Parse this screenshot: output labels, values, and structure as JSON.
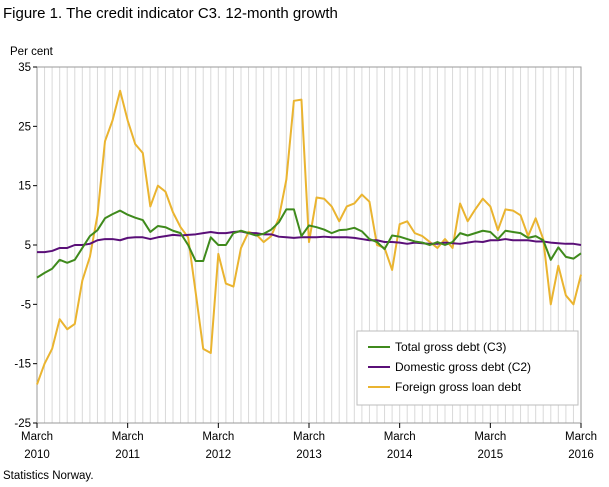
{
  "figure": {
    "title": "Figure 1. The credit indicator C3. 12-month growth",
    "source": "Statistics Norway."
  },
  "chart_data": {
    "type": "line",
    "title": "Figure 1. The credit indicator C3. 12-month growth",
    "ylabel": "Per cent",
    "xlabel": "",
    "ylim": [
      -25,
      35
    ],
    "yticks": [
      35,
      25,
      15,
      5,
      -5,
      -15,
      -25
    ],
    "xlim": [
      "2010-03",
      "2016-03"
    ],
    "x_tick_labels": [
      {
        "month": "March",
        "year": "2010"
      },
      {
        "month": "March",
        "year": "2011"
      },
      {
        "month": "March",
        "year": "2012"
      },
      {
        "month": "March",
        "year": "2013"
      },
      {
        "month": "March",
        "year": "2014"
      },
      {
        "month": "March",
        "year": "2015"
      },
      {
        "month": "March",
        "year": "2016"
      }
    ],
    "grid": "vertical-monthly",
    "legend_position": "bottom-right",
    "x": [
      "2010-03",
      "2010-04",
      "2010-05",
      "2010-06",
      "2010-07",
      "2010-08",
      "2010-09",
      "2010-10",
      "2010-11",
      "2010-12",
      "2011-01",
      "2011-02",
      "2011-03",
      "2011-04",
      "2011-05",
      "2011-06",
      "2011-07",
      "2011-08",
      "2011-09",
      "2011-10",
      "2011-11",
      "2011-12",
      "2012-01",
      "2012-02",
      "2012-03",
      "2012-04",
      "2012-05",
      "2012-06",
      "2012-07",
      "2012-08",
      "2012-09",
      "2012-10",
      "2012-11",
      "2012-12",
      "2013-01",
      "2013-02",
      "2013-03",
      "2013-04",
      "2013-05",
      "2013-06",
      "2013-07",
      "2013-08",
      "2013-09",
      "2013-10",
      "2013-11",
      "2013-12",
      "2014-01",
      "2014-02",
      "2014-03",
      "2014-04",
      "2014-05",
      "2014-06",
      "2014-07",
      "2014-08",
      "2014-09",
      "2014-10",
      "2014-11",
      "2014-12",
      "2015-01",
      "2015-02",
      "2015-03",
      "2015-04",
      "2015-05",
      "2015-06",
      "2015-07",
      "2015-08",
      "2015-09",
      "2015-10",
      "2015-11",
      "2015-12",
      "2016-01",
      "2016-02",
      "2016-03"
    ],
    "series": [
      {
        "name": "Total gross debt (C3)",
        "color": "#3f8a1c",
        "values": [
          -0.5,
          0.3,
          1.0,
          2.5,
          2.0,
          2.5,
          4.5,
          6.5,
          7.5,
          9.5,
          10.2,
          10.8,
          10.1,
          9.6,
          9.2,
          7.2,
          8.2,
          8.0,
          7.4,
          7.0,
          5.0,
          2.3,
          2.3,
          6.3,
          5.0,
          5.0,
          7.0,
          7.4,
          7.0,
          6.6,
          6.9,
          7.6,
          8.8,
          11.0,
          11.0,
          6.5,
          8.3,
          8.0,
          7.6,
          7.0,
          7.5,
          7.6,
          7.9,
          7.3,
          6.0,
          5.5,
          4.3,
          6.6,
          6.4,
          6.0,
          5.6,
          5.4,
          5.0,
          5.5,
          5.0,
          5.5,
          7.0,
          6.6,
          7.0,
          7.4,
          7.2,
          6.0,
          7.4,
          7.2,
          7.0,
          6.2,
          6.5,
          5.8,
          2.5,
          4.6,
          3.0,
          2.7,
          3.6
        ]
      },
      {
        "name": "Domestic gross debt (C2)",
        "color": "#5a0f78",
        "values": [
          3.8,
          3.8,
          4.0,
          4.5,
          4.5,
          5.0,
          5.0,
          5.2,
          5.8,
          6.0,
          6.0,
          5.8,
          6.2,
          6.3,
          6.3,
          6.0,
          6.3,
          6.5,
          6.7,
          6.6,
          6.7,
          6.8,
          7.0,
          7.2,
          7.0,
          7.0,
          7.2,
          7.3,
          7.0,
          7.0,
          6.8,
          6.8,
          6.4,
          6.3,
          6.2,
          6.3,
          6.3,
          6.3,
          6.4,
          6.3,
          6.3,
          6.3,
          6.2,
          6.0,
          5.8,
          5.8,
          5.5,
          5.5,
          5.4,
          5.2,
          5.4,
          5.3,
          5.2,
          5.2,
          5.4,
          5.3,
          5.2,
          5.4,
          5.6,
          5.5,
          5.8,
          5.8,
          6.0,
          5.8,
          5.8,
          5.8,
          5.6,
          5.6,
          5.4,
          5.3,
          5.2,
          5.2,
          5.0
        ]
      },
      {
        "name": "Foreign gross loan debt",
        "color": "#eab430",
        "values": [
          -18.5,
          -15.0,
          -12.5,
          -7.5,
          -9.2,
          -8.3,
          -1.0,
          3.0,
          10.0,
          22.5,
          26.0,
          31.0,
          26.0,
          22.0,
          20.5,
          11.5,
          15.0,
          14.0,
          10.5,
          8.0,
          6.3,
          -3.0,
          -12.5,
          -13.2,
          3.5,
          -1.5,
          -2.0,
          4.5,
          7.2,
          6.8,
          5.5,
          6.5,
          9.5,
          16.0,
          29.3,
          29.5,
          5.5,
          13.0,
          12.8,
          11.5,
          9.0,
          11.5,
          12.0,
          13.5,
          12.3,
          5.0,
          4.5,
          0.8,
          8.5,
          9.0,
          7.0,
          6.5,
          5.5,
          4.5,
          6.0,
          4.5,
          12.0,
          9.0,
          11.0,
          12.8,
          11.5,
          7.5,
          11.0,
          10.8,
          10.0,
          6.5,
          9.5,
          6.0,
          -5.0,
          1.5,
          -3.5,
          -5.0,
          0.0
        ]
      }
    ]
  }
}
